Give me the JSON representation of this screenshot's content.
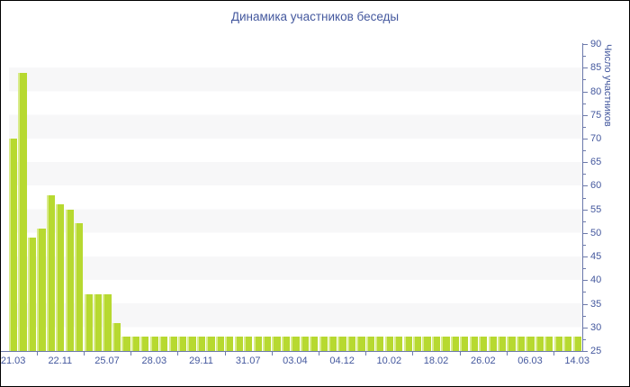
{
  "colors": {
    "bar": "#b7d930",
    "bar_highlight": "#d9eb8a",
    "title_text": "#44589e",
    "axis_text": "#44589e",
    "axis_line": "#6c79ab",
    "stripe_band": "#f7f7f8",
    "background": "#ffffff",
    "border": "#000000"
  },
  "chart_data": {
    "type": "bar",
    "title": "Динамика участников беседы",
    "xlabel": "",
    "ylabel": "Число участников",
    "ylim": [
      25,
      90
    ],
    "grid": "horizontal-stripe-bands",
    "legend": "none",
    "y_axis_side": "right",
    "y_tick_labels": [
      90,
      85,
      80,
      75,
      70,
      65,
      60,
      55,
      50,
      45,
      40,
      35,
      30,
      25
    ],
    "y_minor_tick_step": 2.5,
    "x_tick_labels": [
      "21.03",
      "22.11",
      "25.07",
      "28.03",
      "29.11",
      "31.07",
      "03.04",
      "04.12",
      "10.02",
      "18.02",
      "26.02",
      "06.03",
      "14.03"
    ],
    "x_label_every_n_bars": 5,
    "bar_count": 61,
    "values": [
      70,
      84,
      49,
      51,
      58,
      56,
      55,
      52,
      37,
      37,
      37,
      31,
      28,
      28,
      28,
      28,
      28,
      28,
      28,
      28,
      28,
      28,
      28,
      28,
      28,
      28,
      28,
      28,
      28,
      28,
      28,
      28,
      28,
      28,
      28,
      28,
      28,
      28,
      28,
      28,
      28,
      28,
      28,
      28,
      28,
      28,
      28,
      28,
      28,
      28,
      28,
      28,
      28,
      28,
      28,
      28,
      28,
      28,
      28,
      28,
      28
    ]
  }
}
